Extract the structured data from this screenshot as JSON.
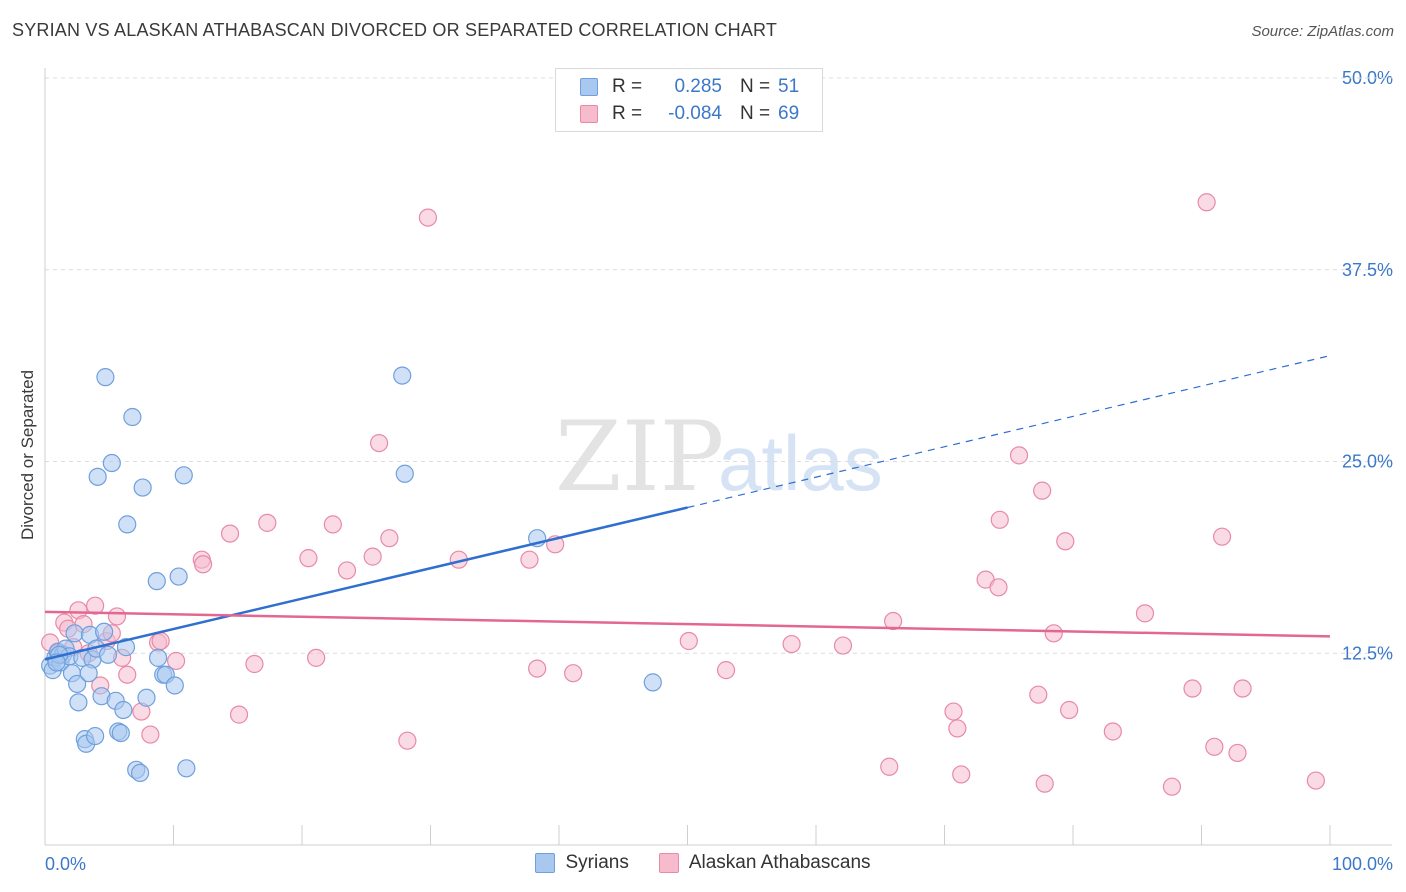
{
  "title": "SYRIAN VS ALASKAN ATHABASCAN DIVORCED OR SEPARATED CORRELATION CHART",
  "source": "Source: ZipAtlas.com",
  "watermark": {
    "zip": "ZIP",
    "atlas": "atlas"
  },
  "legend": {
    "rows": [
      {
        "r_label": "R =",
        "r_value": "0.285",
        "n_label": "N =",
        "n_value": "51"
      },
      {
        "r_label": "R =",
        "r_value": "-0.084",
        "n_label": "N =",
        "n_value": "69"
      }
    ]
  },
  "bottom_legend": {
    "syrians": "Syrians",
    "alaskan": "Alaskan Athabascans"
  },
  "colors": {
    "blue_fill": "#a9c8f0",
    "blue_stroke": "#6fa0dc",
    "blue_line": "#2f6fcf",
    "pink_fill": "#f6bccd",
    "pink_stroke": "#e88aa6",
    "pink_line": "#e36791",
    "axis_text": "#3b78c9",
    "grid": "#dcdcdc"
  },
  "chart_data": {
    "type": "scatter",
    "title": "SYRIAN VS ALASKAN ATHABASCAN DIVORCED OR SEPARATED CORRELATION CHART",
    "xlabel": "",
    "ylabel": "Divorced or Separated",
    "xlim": [
      0,
      100
    ],
    "ylim": [
      0,
      50
    ],
    "x_tick_labels": [
      "0.0%",
      "100.0%"
    ],
    "y_ticks": [
      12.5,
      25.0,
      37.5,
      50.0
    ],
    "y_tick_labels": [
      "12.5%",
      "25.0%",
      "37.5%",
      "50.0%"
    ],
    "series": [
      {
        "name": "Syrians",
        "r": 0.285,
        "n": 51,
        "trend": {
          "x0": 0,
          "y0": 12.1,
          "x1": 100,
          "y1": 31.9,
          "solid_until": 50
        },
        "points": [
          [
            0.4,
            11.7
          ],
          [
            0.6,
            11.4
          ],
          [
            0.8,
            12.2
          ],
          [
            1.0,
            12.6
          ],
          [
            1.2,
            11.9
          ],
          [
            1.4,
            12.4
          ],
          [
            1.6,
            12.8
          ],
          [
            1.9,
            12.3
          ],
          [
            2.1,
            11.2
          ],
          [
            2.3,
            13.8
          ],
          [
            2.5,
            10.5
          ],
          [
            2.6,
            9.3
          ],
          [
            2.9,
            12.2
          ],
          [
            3.1,
            6.9
          ],
          [
            3.2,
            6.6
          ],
          [
            3.5,
            13.7
          ],
          [
            3.7,
            12.1
          ],
          [
            3.9,
            7.1
          ],
          [
            4.0,
            12.8
          ],
          [
            4.1,
            24.0
          ],
          [
            4.4,
            9.7
          ],
          [
            4.6,
            13.9
          ],
          [
            4.7,
            30.5
          ],
          [
            4.9,
            12.4
          ],
          [
            5.2,
            24.9
          ],
          [
            5.5,
            9.4
          ],
          [
            5.7,
            7.4
          ],
          [
            5.9,
            7.3
          ],
          [
            6.1,
            8.8
          ],
          [
            6.4,
            20.9
          ],
          [
            6.8,
            27.9
          ],
          [
            7.1,
            4.9
          ],
          [
            7.4,
            4.7
          ],
          [
            7.6,
            23.3
          ],
          [
            7.9,
            9.6
          ],
          [
            8.7,
            17.2
          ],
          [
            8.8,
            12.2
          ],
          [
            9.2,
            11.1
          ],
          [
            9.4,
            11.1
          ],
          [
            10.1,
            10.4
          ],
          [
            10.4,
            17.5
          ],
          [
            10.8,
            24.1
          ],
          [
            11.0,
            5.0
          ],
          [
            27.8,
            30.6
          ],
          [
            28.0,
            24.2
          ],
          [
            38.3,
            20.0
          ],
          [
            47.3,
            10.6
          ],
          [
            1.1,
            12.4
          ],
          [
            3.4,
            11.2
          ],
          [
            6.3,
            12.9
          ],
          [
            0.9,
            11.9
          ]
        ]
      },
      {
        "name": "Alaskan Athabascans",
        "r": -0.084,
        "n": 69,
        "trend": {
          "x0": 0,
          "y0": 15.2,
          "x1": 100,
          "y1": 13.6
        },
        "points": [
          [
            0.4,
            13.2
          ],
          [
            1.0,
            12.5
          ],
          [
            1.5,
            14.5
          ],
          [
            1.8,
            14.1
          ],
          [
            2.2,
            12.9
          ],
          [
            2.6,
            15.3
          ],
          [
            3.0,
            14.4
          ],
          [
            3.4,
            12.5
          ],
          [
            3.9,
            15.6
          ],
          [
            4.3,
            10.4
          ],
          [
            4.8,
            13.3
          ],
          [
            5.2,
            13.8
          ],
          [
            5.6,
            14.9
          ],
          [
            6.0,
            12.2
          ],
          [
            6.4,
            11.1
          ],
          [
            7.5,
            8.7
          ],
          [
            8.2,
            7.2
          ],
          [
            8.8,
            13.2
          ],
          [
            9.0,
            13.3
          ],
          [
            10.2,
            12.0
          ],
          [
            12.2,
            18.6
          ],
          [
            12.3,
            18.3
          ],
          [
            14.4,
            20.3
          ],
          [
            15.1,
            8.5
          ],
          [
            16.3,
            11.8
          ],
          [
            17.3,
            21.0
          ],
          [
            20.5,
            18.7
          ],
          [
            21.1,
            12.2
          ],
          [
            22.4,
            20.9
          ],
          [
            23.5,
            17.9
          ],
          [
            25.5,
            18.8
          ],
          [
            26.0,
            26.2
          ],
          [
            26.8,
            20.0
          ],
          [
            28.2,
            6.8
          ],
          [
            29.8,
            40.9
          ],
          [
            32.2,
            18.6
          ],
          [
            37.7,
            18.6
          ],
          [
            38.3,
            11.5
          ],
          [
            39.7,
            19.6
          ],
          [
            41.1,
            11.2
          ],
          [
            50.1,
            13.3
          ],
          [
            53.0,
            11.4
          ],
          [
            58.1,
            13.1
          ],
          [
            62.1,
            13.0
          ],
          [
            65.7,
            5.1
          ],
          [
            66.0,
            14.6
          ],
          [
            70.7,
            8.7
          ],
          [
            71.0,
            7.6
          ],
          [
            71.3,
            4.6
          ],
          [
            73.2,
            17.3
          ],
          [
            74.2,
            16.8
          ],
          [
            74.3,
            21.2
          ],
          [
            75.8,
            25.4
          ],
          [
            77.3,
            9.8
          ],
          [
            77.6,
            23.1
          ],
          [
            77.8,
            4.0
          ],
          [
            78.5,
            13.8
          ],
          [
            79.4,
            19.8
          ],
          [
            79.7,
            8.8
          ],
          [
            83.1,
            7.4
          ],
          [
            85.6,
            15.1
          ],
          [
            87.7,
            3.8
          ],
          [
            89.3,
            10.2
          ],
          [
            90.4,
            41.9
          ],
          [
            91.0,
            6.4
          ],
          [
            91.6,
            20.1
          ],
          [
            92.8,
            6.0
          ],
          [
            93.2,
            10.2
          ],
          [
            98.9,
            4.2
          ]
        ]
      }
    ]
  }
}
